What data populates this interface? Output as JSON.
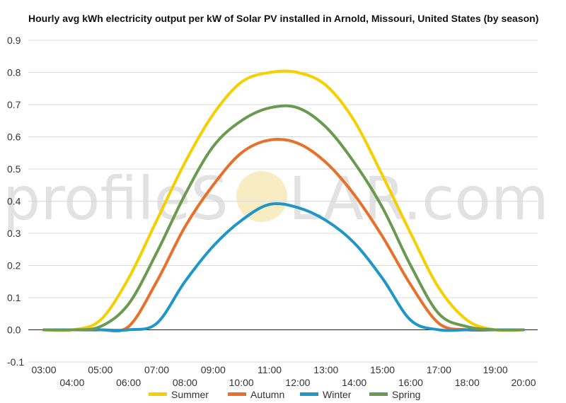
{
  "chart_data": {
    "type": "line",
    "title": "Hourly avg kWh electricity output per kW of Solar PV installed in Arnold, Missouri, United States (by season)",
    "xlabel": "",
    "ylabel": "",
    "x": [
      "03:00",
      "04:00",
      "05:00",
      "06:00",
      "07:00",
      "08:00",
      "09:00",
      "10:00",
      "11:00",
      "12:00",
      "13:00",
      "14:00",
      "15:00",
      "16:00",
      "17:00",
      "18:00",
      "19:00",
      "20:00"
    ],
    "ylim": [
      -0.1,
      0.9
    ],
    "yticks": [
      "0.9",
      "0.8",
      "0.7",
      "0.6",
      "0.5",
      "0.4",
      "0.3",
      "0.2",
      "0.1",
      "0.0",
      "-0.1"
    ],
    "grid": true,
    "legend_position": "bottom",
    "series": [
      {
        "name": "Summer",
        "color": "#f5d000",
        "values": [
          0,
          0,
          0.03,
          0.16,
          0.34,
          0.52,
          0.67,
          0.77,
          0.8,
          0.8,
          0.76,
          0.65,
          0.48,
          0.3,
          0.13,
          0.03,
          0,
          0
        ]
      },
      {
        "name": "Autumn",
        "color": "#e8702a",
        "values": [
          0,
          0,
          0,
          0.01,
          0.15,
          0.32,
          0.45,
          0.55,
          0.59,
          0.58,
          0.52,
          0.42,
          0.29,
          0.14,
          0.02,
          0,
          0,
          0
        ]
      },
      {
        "name": "Winter",
        "color": "#1e96c8",
        "values": [
          0,
          0,
          0,
          0,
          0.02,
          0.15,
          0.26,
          0.34,
          0.39,
          0.38,
          0.34,
          0.27,
          0.16,
          0.03,
          0,
          0,
          0,
          0
        ]
      },
      {
        "name": "Spring",
        "color": "#6a9a50",
        "values": [
          0,
          0,
          0.01,
          0.08,
          0.24,
          0.42,
          0.57,
          0.65,
          0.69,
          0.69,
          0.63,
          0.52,
          0.38,
          0.2,
          0.05,
          0.01,
          0,
          0
        ]
      }
    ]
  },
  "watermark": {
    "part1": "profileS",
    "part2": "LAR.com",
    "sun_color": "#f5e6a8"
  }
}
